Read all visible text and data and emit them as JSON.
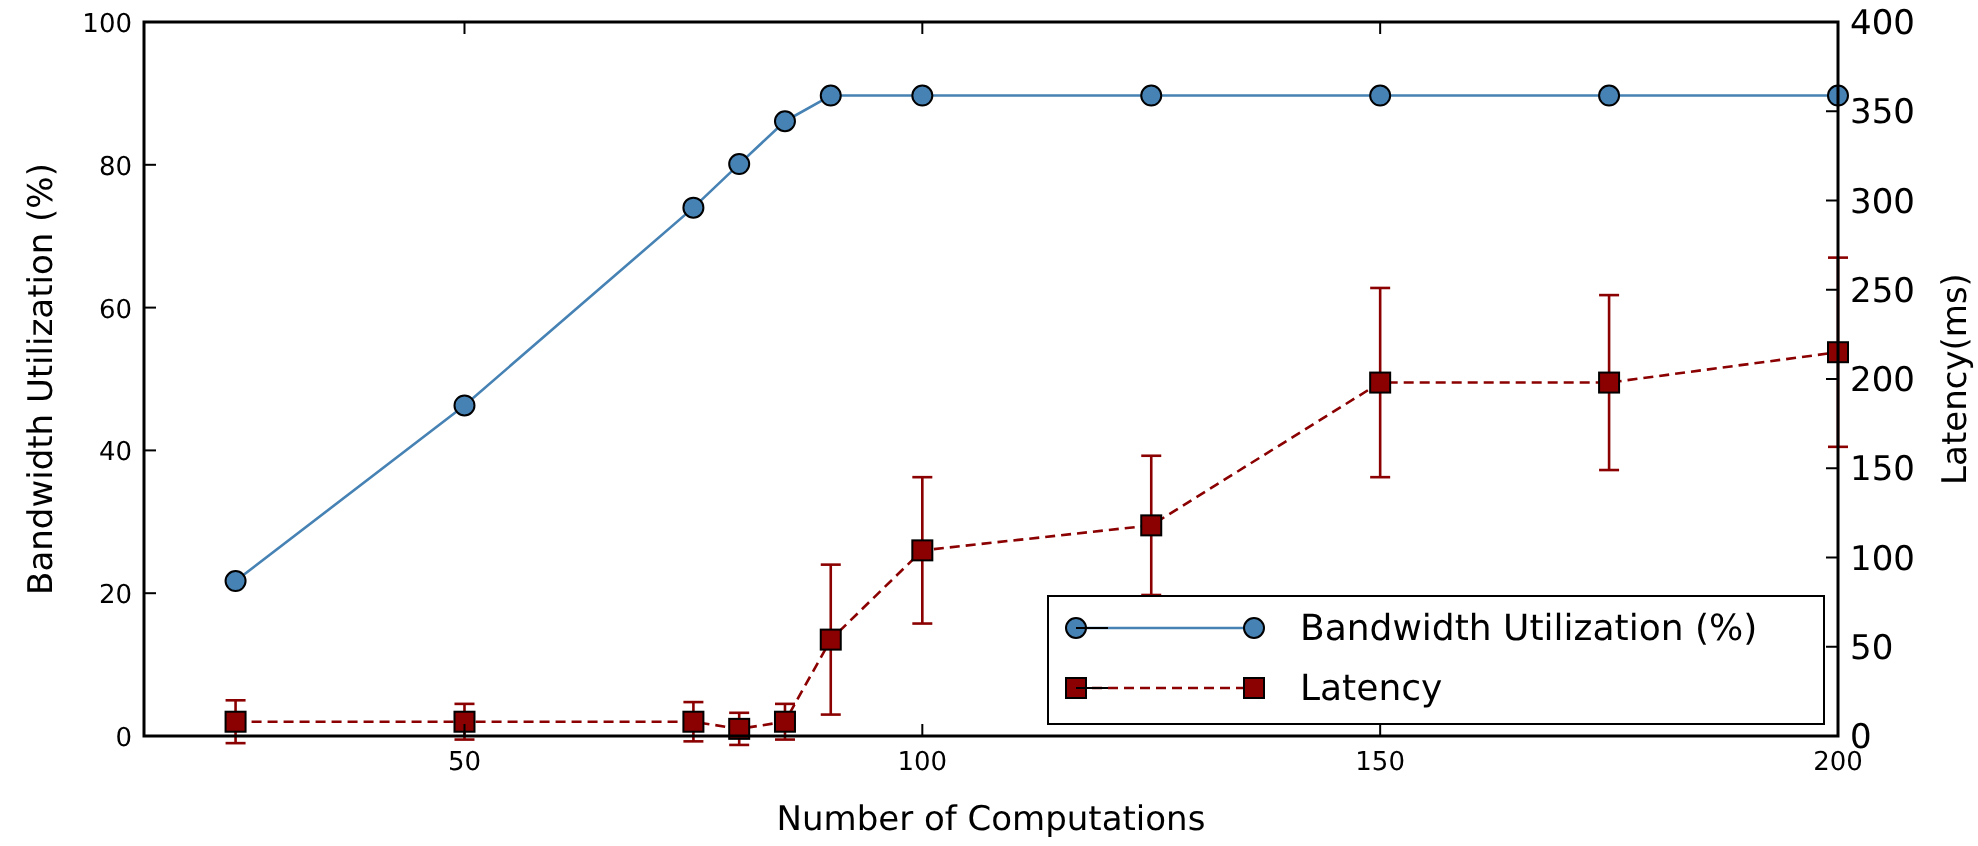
{
  "chart_data": {
    "type": "line",
    "xlabel": "Number of Computations",
    "ylabel": "Bandwidth Utilization (%)",
    "y2label": "Latency(ms)",
    "x": [
      25,
      50,
      75,
      80,
      85,
      90,
      100,
      125,
      150,
      175,
      200
    ],
    "xlim": [
      15,
      200
    ],
    "xticks": [
      50,
      100,
      150,
      200
    ],
    "ylim": [
      0,
      100
    ],
    "yticks": [
      0,
      20,
      40,
      60,
      80,
      100
    ],
    "y2lim": [
      0,
      400
    ],
    "y2ticks": [
      0,
      50,
      100,
      150,
      200,
      250,
      300,
      350,
      400
    ],
    "series": [
      {
        "name": "Bandwidth Utilization (%)",
        "color": "#4682b4",
        "values": [
          21.7,
          46.3,
          74.0,
          80.1,
          86.1,
          89.7,
          89.7,
          89.7,
          89.7,
          89.7,
          89.7
        ],
        "marker": "circle",
        "line_style": "solid"
      },
      {
        "name": "Latency",
        "color": "#8b0000",
        "axis": "y2",
        "values": [
          8,
          8,
          8,
          4,
          8,
          54,
          104,
          118,
          198,
          198,
          215
        ],
        "errors": [
          12,
          10,
          11,
          9,
          10,
          42,
          41,
          39,
          53,
          49,
          53
        ],
        "marker": "square",
        "line_style": "dashed"
      }
    ],
    "legend": "bottom right",
    "grid": false
  }
}
